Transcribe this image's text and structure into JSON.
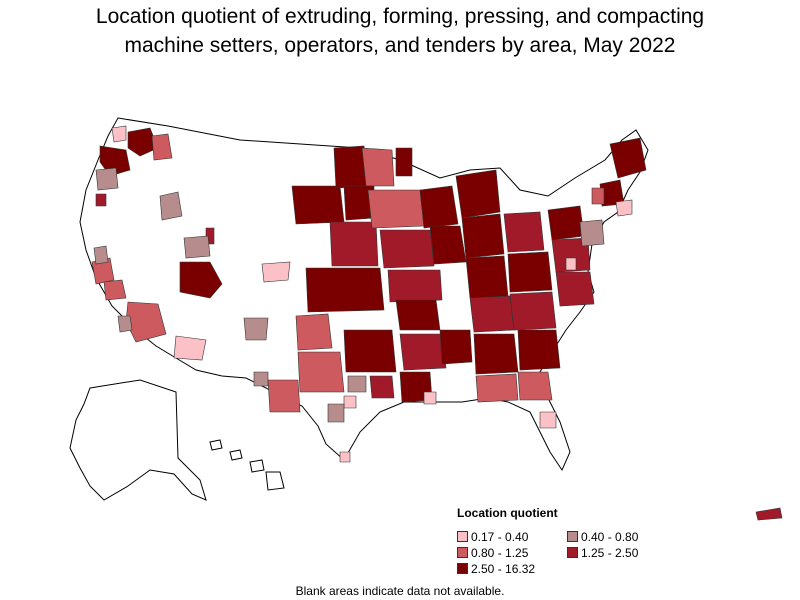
{
  "title": {
    "line1": "Location quotient of extruding, forming, pressing, and compacting",
    "line2": "machine setters, operators, and tenders by area, May 2022"
  },
  "legend": {
    "title": "Location quotient",
    "items": [
      {
        "label": "0.17 - 0.40",
        "color": "#fbc1c7"
      },
      {
        "label": "0.40 - 0.80",
        "color": "#b68c8c"
      },
      {
        "label": "0.80 - 1.25",
        "color": "#cd5a5e"
      },
      {
        "label": "1.25 - 2.50",
        "color": "#a11a2a"
      },
      {
        "label": "2.50 - 16.32",
        "color": "#7a0000"
      }
    ]
  },
  "note": "Blank areas indicate data not available.",
  "colors": {
    "outline": "#000000",
    "no_data": "#ffffff"
  }
}
